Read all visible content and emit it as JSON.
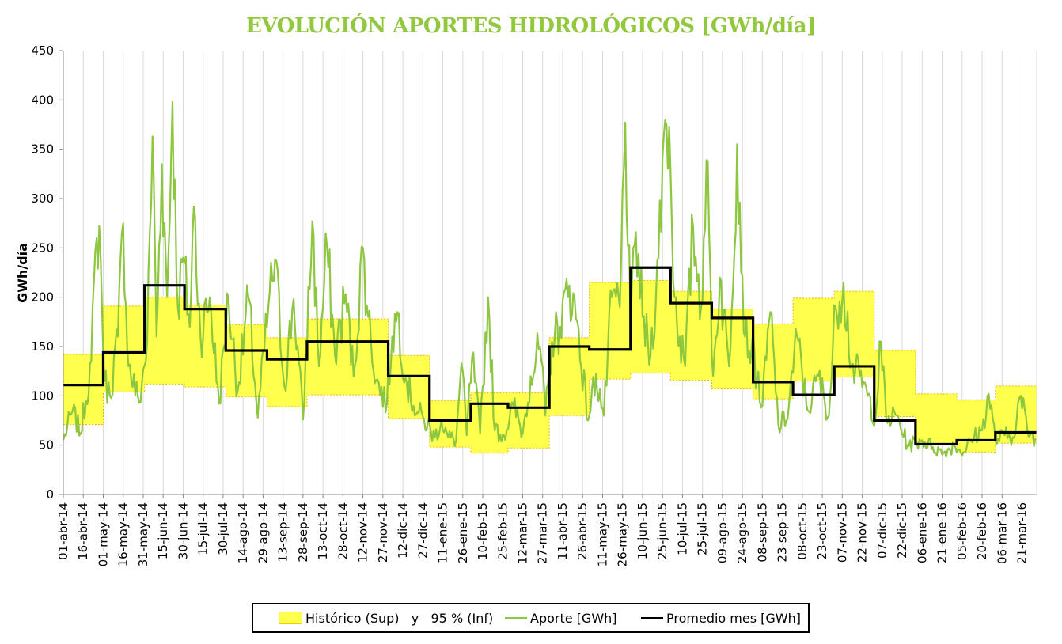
{
  "chart_data": {
    "type": "line",
    "title": "EVOLUCIÓN APORTES HIDROLÓGICOS [GWh/día]",
    "ylabel": "GWh/día",
    "xlabel": "",
    "ylim": [
      0,
      450
    ],
    "yticks": [
      0,
      50,
      100,
      150,
      200,
      250,
      300,
      350,
      400,
      450
    ],
    "x_range": [
      "2014-04-01",
      "2016-03-31"
    ],
    "xtick_labels": [
      "01-abr-14",
      "16-abr-14",
      "01-may-14",
      "16-may-14",
      "31-may-14",
      "15-jun-14",
      "30-jun-14",
      "15-jul-14",
      "30-jul-14",
      "14-ago-14",
      "29-ago-14",
      "13-sep-14",
      "28-sep-14",
      "13-oct-14",
      "28-oct-14",
      "12-nov-14",
      "27-nov-14",
      "12-dic-14",
      "27-dic-14",
      "11-ene-15",
      "26-ene-15",
      "10-feb-15",
      "25-feb-15",
      "12-mar-15",
      "27-mar-15",
      "11-abr-15",
      "26-abr-15",
      "11-may-15",
      "26-may-15",
      "10-jun-15",
      "25-jun-15",
      "10-jul-15",
      "25-jul-15",
      "09-ago-15",
      "24-ago-15",
      "08-sep-15",
      "23-sep-15",
      "08-oct-15",
      "23-oct-15",
      "07-nov-15",
      "22-nov-15",
      "07-dic-15",
      "22-dic-15",
      "06-ene-16",
      "21-ene-16",
      "05-feb-16",
      "20-feb-16",
      "06-mar-16",
      "21-mar-16"
    ],
    "grid": true,
    "legend_position": "bottom",
    "months": [
      "abr-14",
      "may-14",
      "jun-14",
      "jul-14",
      "ago-14",
      "sep-14",
      "oct-14",
      "nov-14",
      "dic-14",
      "ene-15",
      "feb-15",
      "mar-15",
      "abr-15",
      "may-15",
      "jun-15",
      "jul-15",
      "ago-15",
      "sep-15",
      "oct-15",
      "nov-15",
      "dic-15",
      "ene-16",
      "feb-16",
      "mar-16"
    ],
    "series": [
      {
        "name": "Histórico (Sup)   y   95 % (Inf)",
        "type": "band",
        "upper": [
          142,
          191,
          200,
          192,
          172,
          159,
          178,
          178,
          141,
          95,
          103,
          103,
          159,
          215,
          217,
          206,
          188,
          173,
          199,
          206,
          146,
          102,
          96,
          110
        ],
        "lower": [
          71,
          104,
          112,
          109,
          99,
          89,
          101,
          101,
          77,
          48,
          42,
          47,
          80,
          117,
          123,
          116,
          107,
          97,
          115,
          119,
          79,
          50,
          43,
          52
        ]
      },
      {
        "name": "Promedio mes [GWh]",
        "type": "step",
        "values": [
          111,
          144,
          212,
          188,
          146,
          137,
          155,
          155,
          120,
          75,
          92,
          88,
          150,
          147,
          230,
          194,
          179,
          114,
          101,
          130,
          75,
          51,
          55,
          63
        ]
      },
      {
        "name": "Aporte [GWh]",
        "type": "line",
        "points": [
          [
            "2014-04-01",
            55
          ],
          [
            "2014-04-08",
            85
          ],
          [
            "2014-04-14",
            62
          ],
          [
            "2014-04-22",
            135
          ],
          [
            "2014-04-26",
            260
          ],
          [
            "2014-04-28",
            272
          ],
          [
            "2014-05-02",
            115
          ],
          [
            "2014-05-06",
            100
          ],
          [
            "2014-05-12",
            160
          ],
          [
            "2014-05-16",
            275
          ],
          [
            "2014-05-20",
            130
          ],
          [
            "2014-05-28",
            93
          ],
          [
            "2014-06-03",
            155
          ],
          [
            "2014-06-07",
            363
          ],
          [
            "2014-06-10",
            160
          ],
          [
            "2014-06-14",
            335
          ],
          [
            "2014-06-18",
            200
          ],
          [
            "2014-06-22",
            398
          ],
          [
            "2014-06-26",
            190
          ],
          [
            "2014-06-30",
            240
          ],
          [
            "2014-07-05",
            170
          ],
          [
            "2014-07-08",
            292
          ],
          [
            "2014-07-13",
            160
          ],
          [
            "2014-07-20",
            200
          ],
          [
            "2014-07-27",
            92
          ],
          [
            "2014-08-03",
            200
          ],
          [
            "2014-08-10",
            105
          ],
          [
            "2014-08-18",
            200
          ],
          [
            "2014-08-25",
            78
          ],
          [
            "2014-09-02",
            190
          ],
          [
            "2014-09-07",
            238
          ],
          [
            "2014-09-14",
            110
          ],
          [
            "2014-09-21",
            198
          ],
          [
            "2014-09-28",
            76
          ],
          [
            "2014-10-05",
            277
          ],
          [
            "2014-10-10",
            130
          ],
          [
            "2014-10-16",
            253
          ],
          [
            "2014-10-22",
            140
          ],
          [
            "2014-10-30",
            203
          ],
          [
            "2014-11-05",
            120
          ],
          [
            "2014-11-12",
            250
          ],
          [
            "2014-11-16",
            180
          ],
          [
            "2014-11-22",
            116
          ],
          [
            "2014-11-30",
            92
          ],
          [
            "2014-12-04",
            160
          ],
          [
            "2014-12-08",
            185
          ],
          [
            "2014-12-14",
            118
          ],
          [
            "2014-12-20",
            90
          ],
          [
            "2014-12-28",
            75
          ],
          [
            "2015-01-05",
            58
          ],
          [
            "2015-01-10",
            75
          ],
          [
            "2015-01-15",
            58
          ],
          [
            "2015-01-21",
            55
          ],
          [
            "2015-01-25",
            133
          ],
          [
            "2015-01-29",
            60
          ],
          [
            "2015-02-02",
            140
          ],
          [
            "2015-02-08",
            62
          ],
          [
            "2015-02-14",
            200
          ],
          [
            "2015-02-19",
            65
          ],
          [
            "2015-02-26",
            60
          ],
          [
            "2015-03-05",
            90
          ],
          [
            "2015-03-12",
            62
          ],
          [
            "2015-03-18",
            120
          ],
          [
            "2015-03-25",
            150
          ],
          [
            "2015-03-29",
            80
          ],
          [
            "2015-04-03",
            155
          ],
          [
            "2015-04-09",
            170
          ],
          [
            "2015-04-16",
            212
          ],
          [
            "2015-04-22",
            175
          ],
          [
            "2015-04-30",
            75
          ],
          [
            "2015-05-06",
            122
          ],
          [
            "2015-05-12",
            80
          ],
          [
            "2015-05-18",
            200
          ],
          [
            "2015-05-24",
            190
          ],
          [
            "2015-05-28",
            377
          ],
          [
            "2015-06-01",
            165
          ],
          [
            "2015-06-05",
            266
          ],
          [
            "2015-06-10",
            180
          ],
          [
            "2015-06-16",
            140
          ],
          [
            "2015-06-22",
            240
          ],
          [
            "2015-06-26",
            365
          ],
          [
            "2015-06-30",
            373
          ],
          [
            "2015-07-04",
            200
          ],
          [
            "2015-07-08",
            160
          ],
          [
            "2015-07-12",
            130
          ],
          [
            "2015-07-18",
            271
          ],
          [
            "2015-07-24",
            190
          ],
          [
            "2015-07-28",
            339
          ],
          [
            "2015-08-02",
            120
          ],
          [
            "2015-08-07",
            220
          ],
          [
            "2015-08-14",
            130
          ],
          [
            "2015-08-20",
            355
          ],
          [
            "2015-08-26",
            160
          ],
          [
            "2015-08-31",
            150
          ],
          [
            "2015-09-08",
            90
          ],
          [
            "2015-09-14",
            185
          ],
          [
            "2015-09-20",
            70
          ],
          [
            "2015-09-26",
            75
          ],
          [
            "2015-10-04",
            160
          ],
          [
            "2015-10-12",
            85
          ],
          [
            "2015-10-20",
            120
          ],
          [
            "2015-10-28",
            80
          ],
          [
            "2015-11-02",
            190
          ],
          [
            "2015-11-08",
            215
          ],
          [
            "2015-11-14",
            130
          ],
          [
            "2015-11-20",
            120
          ],
          [
            "2015-11-26",
            100
          ],
          [
            "2015-12-02",
            78
          ],
          [
            "2015-12-06",
            155
          ],
          [
            "2015-12-10",
            75
          ],
          [
            "2015-12-18",
            80
          ],
          [
            "2015-12-26",
            50
          ],
          [
            "2016-01-06",
            55
          ],
          [
            "2016-01-14",
            48
          ],
          [
            "2016-01-22",
            42
          ],
          [
            "2016-01-30",
            50
          ],
          [
            "2016-02-06",
            43
          ],
          [
            "2016-02-14",
            58
          ],
          [
            "2016-02-20",
            65
          ],
          [
            "2016-02-25",
            102
          ],
          [
            "2016-03-01",
            55
          ],
          [
            "2016-03-08",
            60
          ],
          [
            "2016-03-14",
            58
          ],
          [
            "2016-03-20",
            100
          ],
          [
            "2016-03-25",
            65
          ],
          [
            "2016-03-31",
            57
          ]
        ]
      }
    ]
  },
  "legend": {
    "band_label": "Histórico (Sup)   y   95 % (Inf)",
    "aporte_label": "Aporte [GWh]",
    "promedio_label": "Promedio mes [GWh]"
  },
  "colors": {
    "title": "#92c83e",
    "band_fill": "#ffff4d",
    "band_edge": "#f0b400",
    "aporte": "#8dc63f",
    "promedio": "#000000",
    "grid": "#d9d9d9"
  }
}
